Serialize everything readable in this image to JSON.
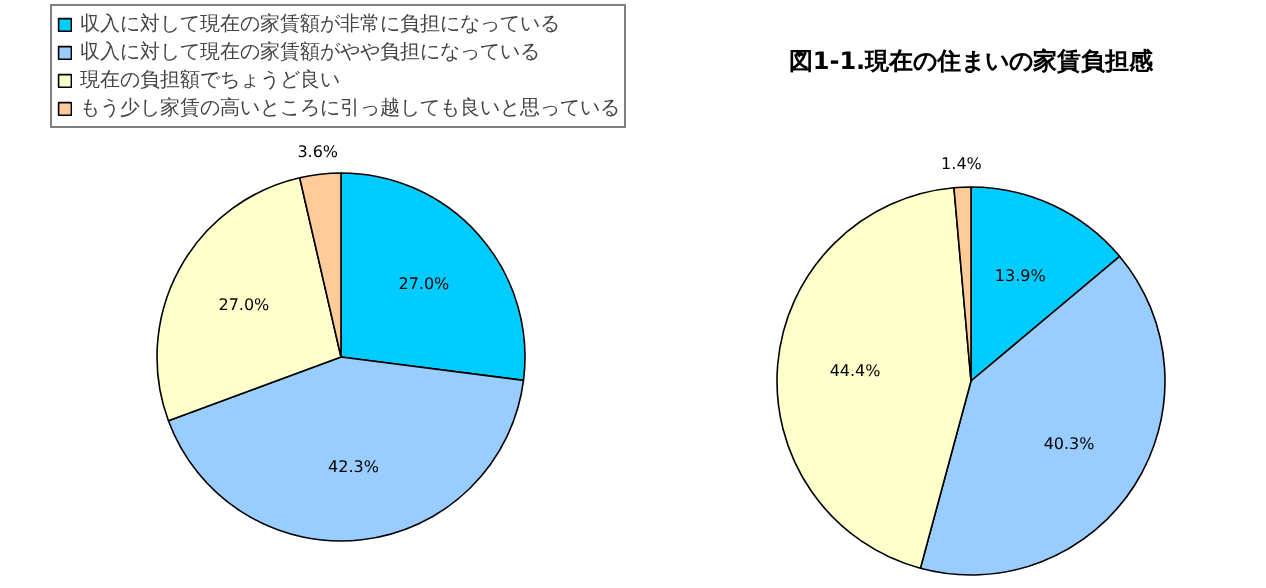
{
  "chart_data": [
    {
      "type": "pie",
      "categories": [
        "収入に対して現在の家賃額が非常に負担になっている",
        "収入に対して現在の家賃額がやや負担になっている",
        "現在の負担額でちょうど良い",
        "もう少し家賃の高いところに引っ越しても良いと思っている"
      ],
      "values": [
        27.0,
        42.3,
        27.0,
        3.6
      ],
      "value_labels": [
        "27.0%",
        "42.3%",
        "27.0%",
        "3.6%"
      ],
      "colors": [
        "#00ccff",
        "#99ccff",
        "#ffffcc",
        "#ffcc99"
      ],
      "legend": "top"
    },
    {
      "type": "pie",
      "title": "図1-1.現在の住まいの家賃負担感",
      "categories": [
        null,
        null,
        null,
        null
      ],
      "values": [
        13.9,
        40.3,
        44.4,
        1.4
      ],
      "value_labels": [
        "13.9%",
        "40.3%",
        "44.4%",
        "1.4%"
      ],
      "colors": [
        "#00ccff",
        "#99ccff",
        "#ffffcc",
        "#ffcc99"
      ],
      "legend": false
    }
  ]
}
